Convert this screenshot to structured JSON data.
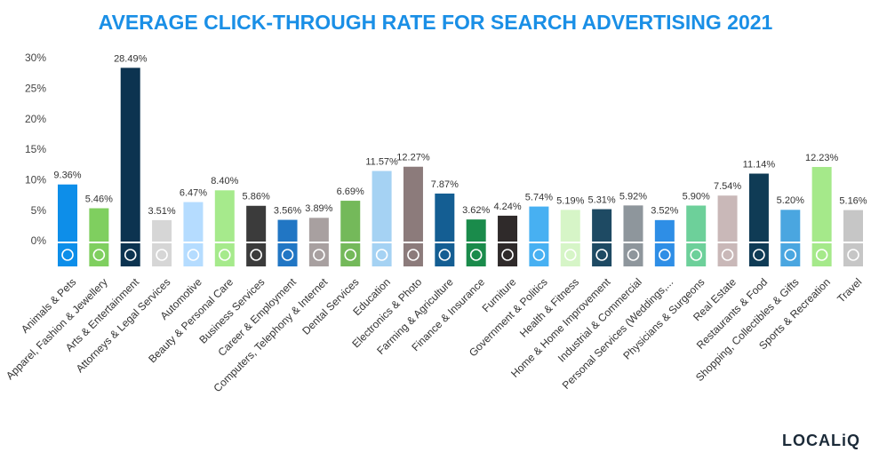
{
  "chart_data": {
    "type": "bar",
    "title": "AVERAGE CLICK-THROUGH RATE FOR SEARCH ADVERTISING 2021",
    "categories": [
      "Animals & Pets",
      "Apparel, Fashion & Jewellery",
      "Arts & Entertainment",
      "Attorneys & Legal Services",
      "Automotive",
      "Beauty & Personal Care",
      "Business Services",
      "Career & Employment",
      "Computers, Telephony & Internet",
      "Dental Services",
      "Education",
      "Electronics & Photo",
      "Farming & Agriculture",
      "Finance & Insurance",
      "Furniture",
      "Government & Politics",
      "Health & Fitness",
      "Home & Home Improvement",
      "Industrial & Commercial",
      "Personal Services (Weddings,...",
      "Physicians & Surgeons",
      "Real Estate",
      "Restaurants & Food",
      "Shopping, Collectibles & Gifts",
      "Sports & Recreation",
      "Travel"
    ],
    "values": [
      9.36,
      5.46,
      28.49,
      3.51,
      6.47,
      8.4,
      5.86,
      3.56,
      3.89,
      6.69,
      11.57,
      12.27,
      7.87,
      3.62,
      4.24,
      5.74,
      5.19,
      5.31,
      5.92,
      3.52,
      5.9,
      7.54,
      11.14,
      5.2,
      12.23,
      5.16
    ],
    "value_labels": [
      "9.36%",
      "5.46%",
      "28.49%",
      "3.51%",
      "6.47%",
      "8.40%",
      "5.86%",
      "3.56%",
      "3.89%",
      "6.69%",
      "11.57%",
      "12.27%",
      "7.87%",
      "3.62%",
      "4.24%",
      "5.74%",
      "5.19%",
      "5.31%",
      "5.92%",
      "3.52%",
      "5.90%",
      "7.54%",
      "11.14%",
      "5.20%",
      "12.23%",
      "5.16%"
    ],
    "colors": [
      "#0d8ee9",
      "#7fcf5f",
      "#0c3350",
      "#d6d6d6",
      "#b5dcff",
      "#a6ea8c",
      "#3b3b3b",
      "#2176c4",
      "#a8a0a0",
      "#74b95a",
      "#a5d2f3",
      "#8c7b7b",
      "#145e93",
      "#1a8b4b",
      "#2f2a2a",
      "#47b0f2",
      "#d6f5c7",
      "#1e4a63",
      "#8e969c",
      "#2e8ee6",
      "#6dd09a",
      "#c9b8b8",
      "#0f3b55",
      "#4aa6e0",
      "#a5e98a",
      "#c6c6c6"
    ],
    "ylim": [
      0,
      30
    ],
    "yticks": [
      {
        "value": 0,
        "label": "0%"
      },
      {
        "value": 5,
        "label": "5%"
      },
      {
        "value": 10,
        "label": "10%"
      },
      {
        "value": 15,
        "label": "15%"
      },
      {
        "value": 20,
        "label": "20%"
      },
      {
        "value": 25,
        "label": "25%"
      },
      {
        "value": 30,
        "label": "30%"
      }
    ],
    "grid": false
  },
  "logo": "LOCALiQ"
}
